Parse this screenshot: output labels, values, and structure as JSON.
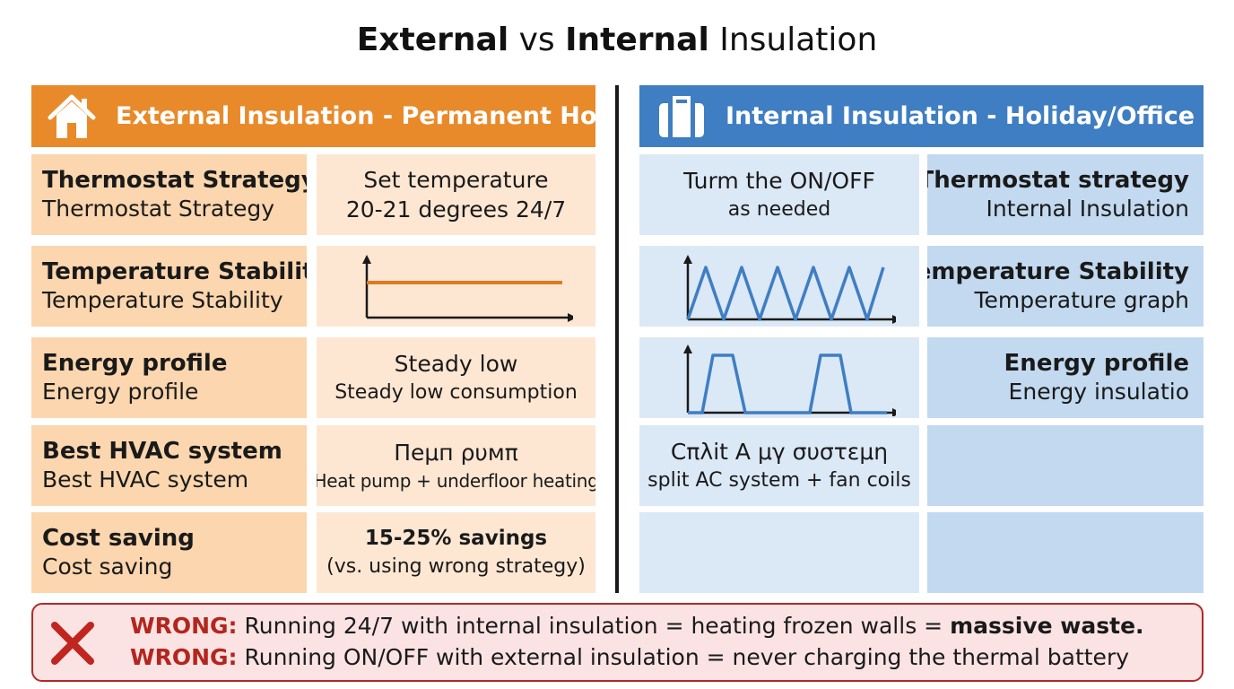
{
  "title": {
    "part1": "External",
    "part2": " vs ",
    "part3": "Internal",
    "part4": " Insulation"
  },
  "headers": {
    "external": {
      "text": "External Insulation - Permanent Home",
      "icon": "house-icon"
    },
    "internal": {
      "text": "Internal Insulation - Holiday/Office",
      "icon": "suitcase-icon"
    }
  },
  "external": {
    "rows": [
      {
        "label": "Thermostat Strategy",
        "sublabel": "Thermostat Strategy",
        "value": "Set temperature",
        "subvalue": "20-21 degrees 24/7"
      },
      {
        "label": "Temperature Stability",
        "sublabel": "Temperature Stability",
        "graph": "flat-line"
      },
      {
        "label": "Energy profile",
        "sublabel": "Energy profile",
        "value": "Steady low",
        "subvalue": "Steady low consumption"
      },
      {
        "label": "Best HVAC system",
        "sublabel": "Best HVAC system",
        "value": "Пеμп ρυмπ",
        "subvalue": "Heat pump + underfloor heating"
      },
      {
        "label": "Cost saving",
        "sublabel": "Cost saving",
        "value": "15-25% savings",
        "subvalue": "(vs. using wrong strategy)"
      }
    ]
  },
  "internal": {
    "rows": [
      {
        "value": "Turm the ON/OFF",
        "subvalue": "as needed",
        "label": "Thermostat strategy",
        "sublabel": "Internal Insulation"
      },
      {
        "graph": "zigzag",
        "label": "Temperature Stability",
        "sublabel": "Temperature graph"
      },
      {
        "graph": "pulses",
        "label": "Energy profile",
        "sublabel": "Energy insulatio"
      },
      {
        "value": "Cπλit A μγ συστεμη",
        "subvalue": "split AC system + fan coils",
        "label": "",
        "sublabel": ""
      },
      {
        "value": "",
        "subvalue": "",
        "label": "",
        "sublabel": ""
      }
    ]
  },
  "warning": {
    "icon": "x-icon",
    "line1": {
      "prefix": "WRONG:",
      "text": " Running 24/7 with internal insulation = heating frozen walls = ",
      "emphasis": "massive waste."
    },
    "line2": {
      "prefix": "WRONG:",
      "text": " Running ON/OFF with external insulation = never charging the thermal battery"
    }
  },
  "colors": {
    "orange": "#e98a2a",
    "orange_light": "#fbd6ae",
    "orange_lighter": "#fde7d3",
    "blue": "#3f7ec2",
    "blue_light": "#c2d9f0",
    "blue_lighter": "#dbe8f6",
    "red": "#b3261e",
    "red_bg": "#fbe3e3"
  }
}
